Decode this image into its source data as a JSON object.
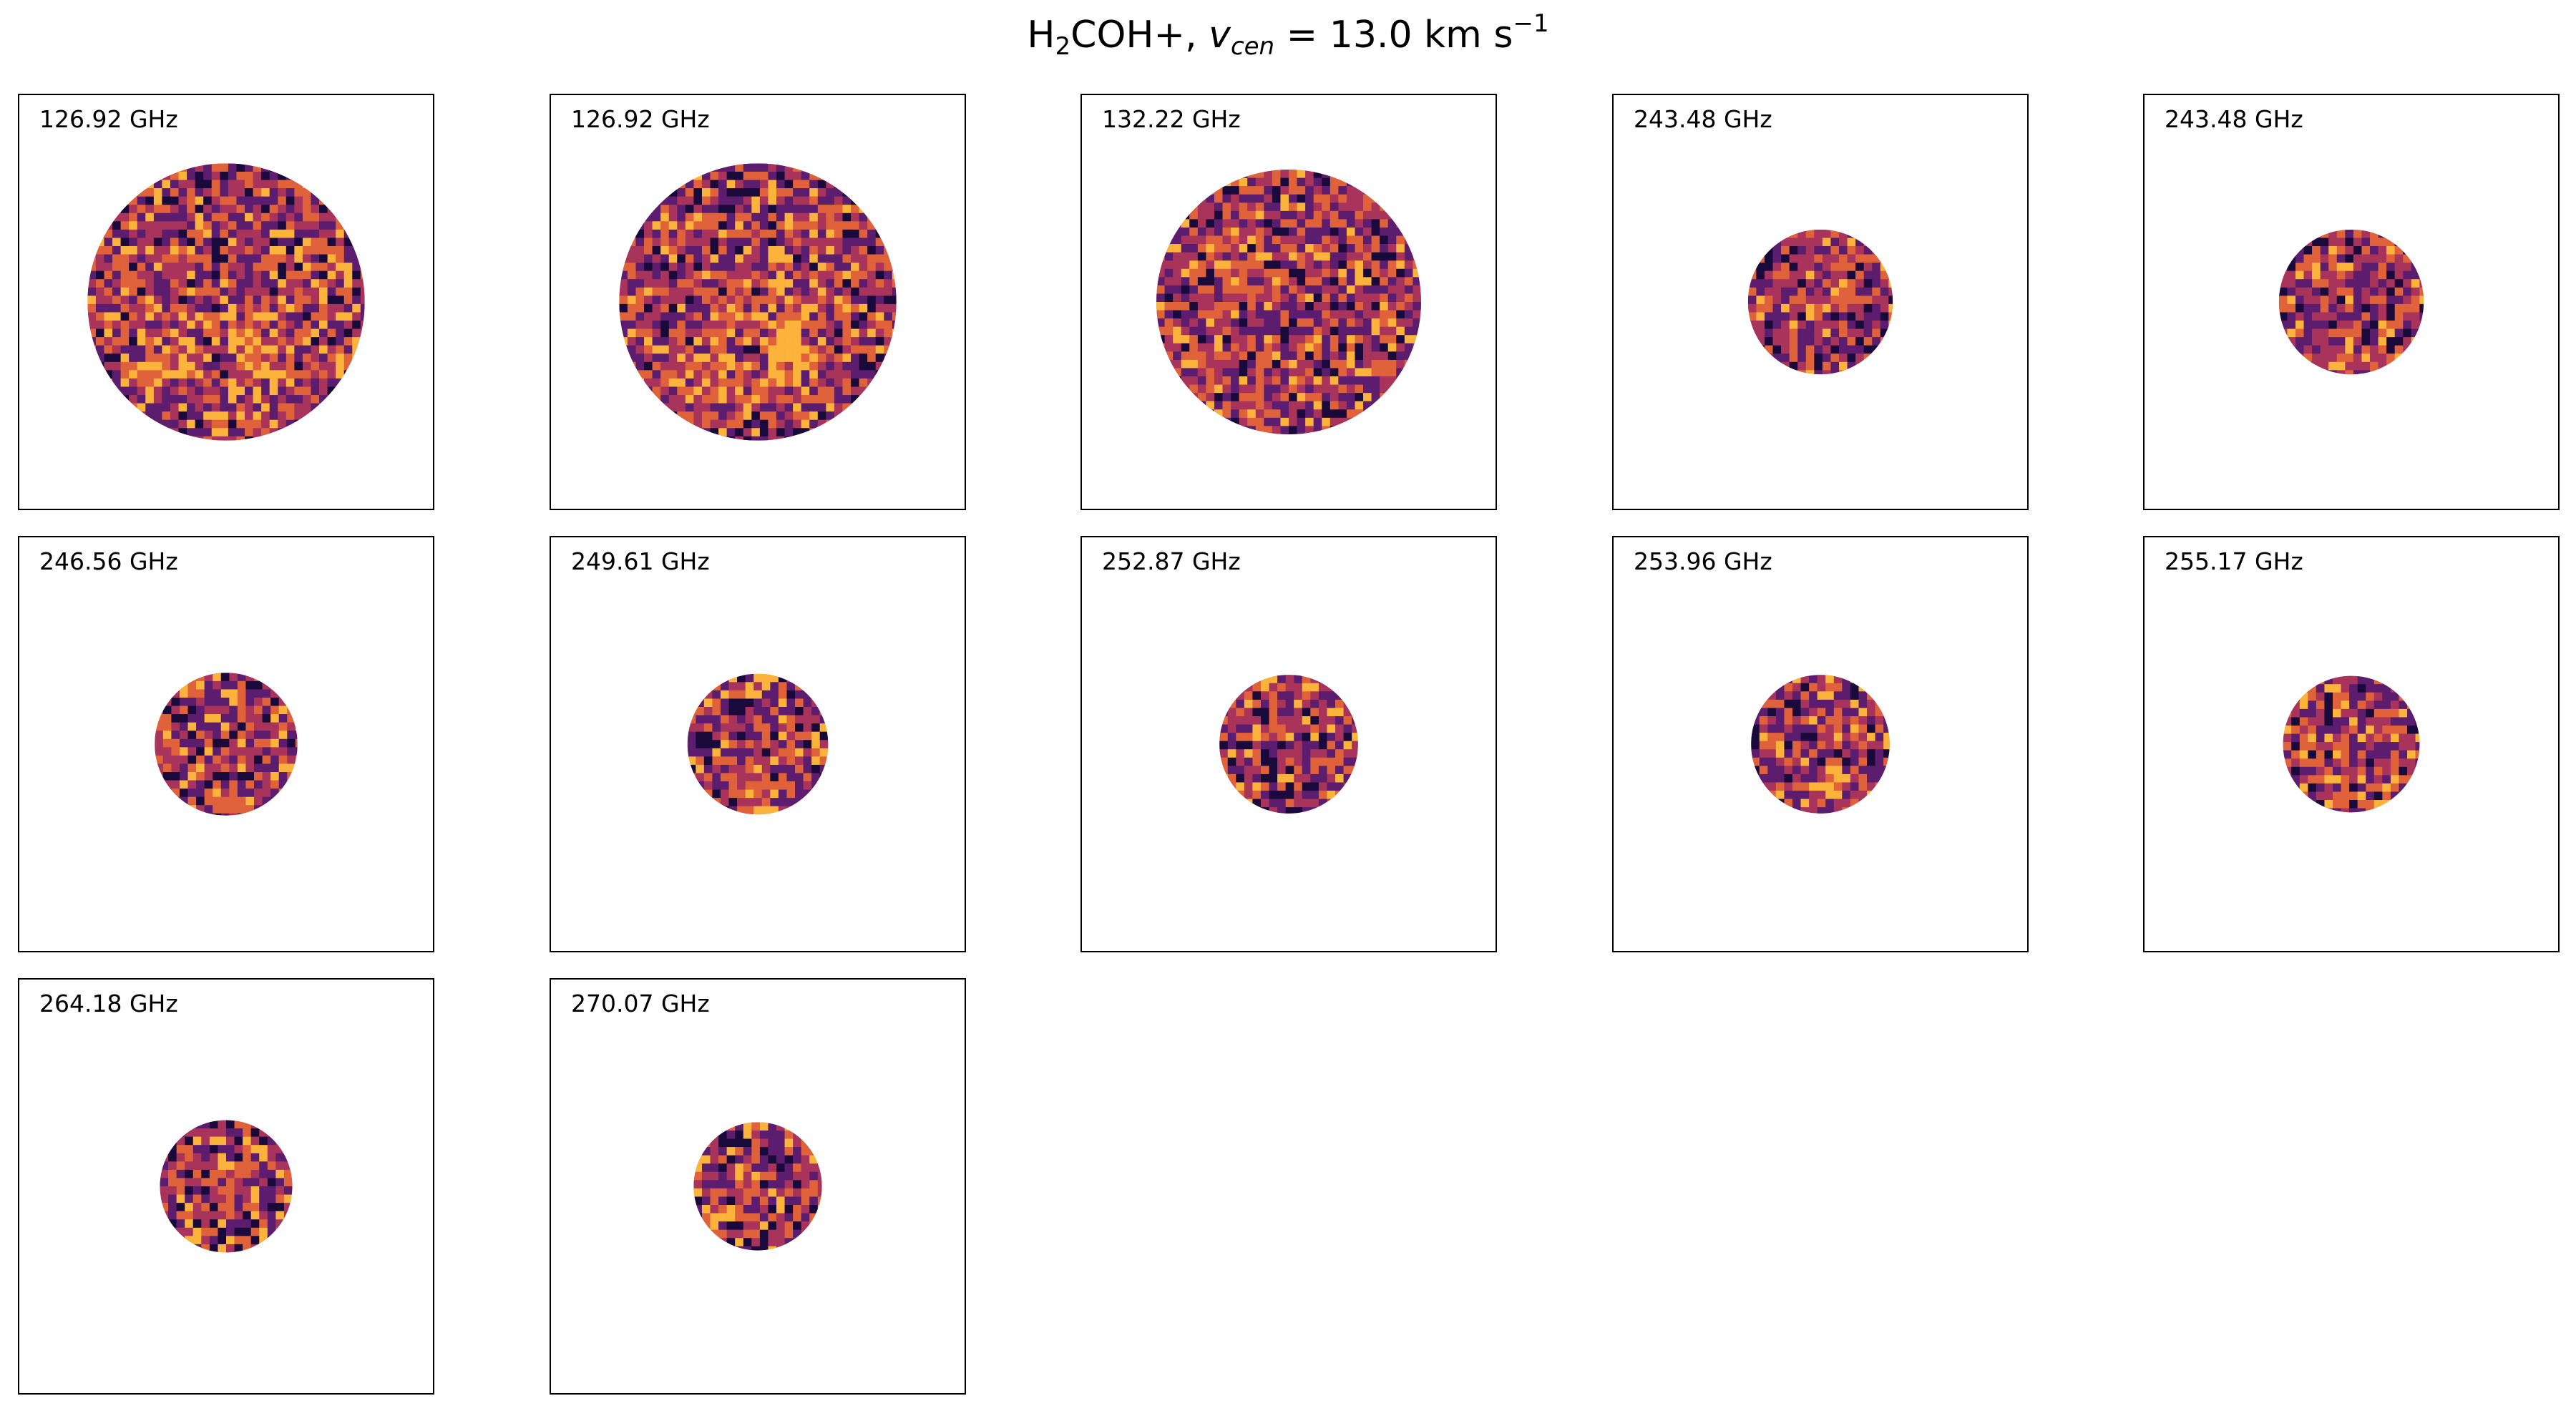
{
  "chart_data": {
    "type": "heatmap",
    "title_parts": {
      "species_main": "H",
      "species_sub": "2",
      "species_rest": "COH+",
      "separator": ", ",
      "velocity_symbol": "v",
      "velocity_sub": "cen",
      "equals": " = ",
      "value_unit": " 13.0 km s",
      "unit_exp": "−1"
    },
    "colormap": "inferno",
    "colors": {
      "low": "#1a0a3c",
      "mid_low": "#5c1d6e",
      "mid": "#a8345b",
      "mid_high": "#e0623a",
      "high": "#fbb33b",
      "frame": "#000000",
      "background": "#ffffff"
    },
    "grid": "off",
    "axes_ticks": "off",
    "panels": [
      {
        "label": "126.92 GHz",
        "beam_radius_frac": 0.67,
        "pattern": "structured"
      },
      {
        "label": "126.92 GHz",
        "beam_radius_frac": 0.67,
        "pattern": "structured"
      },
      {
        "label": "132.22 GHz",
        "beam_radius_frac": 0.64,
        "pattern": "noise"
      },
      {
        "label": "243.48 GHz",
        "beam_radius_frac": 0.35,
        "pattern": "noise"
      },
      {
        "label": "243.48 GHz",
        "beam_radius_frac": 0.35,
        "pattern": "noise"
      },
      {
        "label": "246.56 GHz",
        "beam_radius_frac": 0.345,
        "pattern": "noise"
      },
      {
        "label": "249.61 GHz",
        "beam_radius_frac": 0.34,
        "pattern": "noise"
      },
      {
        "label": "252.87 GHz",
        "beam_radius_frac": 0.335,
        "pattern": "noise"
      },
      {
        "label": "253.96 GHz",
        "beam_radius_frac": 0.335,
        "pattern": "noise_blob"
      },
      {
        "label": "255.17 GHz",
        "beam_radius_frac": 0.33,
        "pattern": "noise"
      },
      {
        "label": "264.18 GHz",
        "beam_radius_frac": 0.32,
        "pattern": "noise"
      },
      {
        "label": "270.07 GHz",
        "beam_radius_frac": 0.31,
        "pattern": "noise"
      }
    ]
  }
}
